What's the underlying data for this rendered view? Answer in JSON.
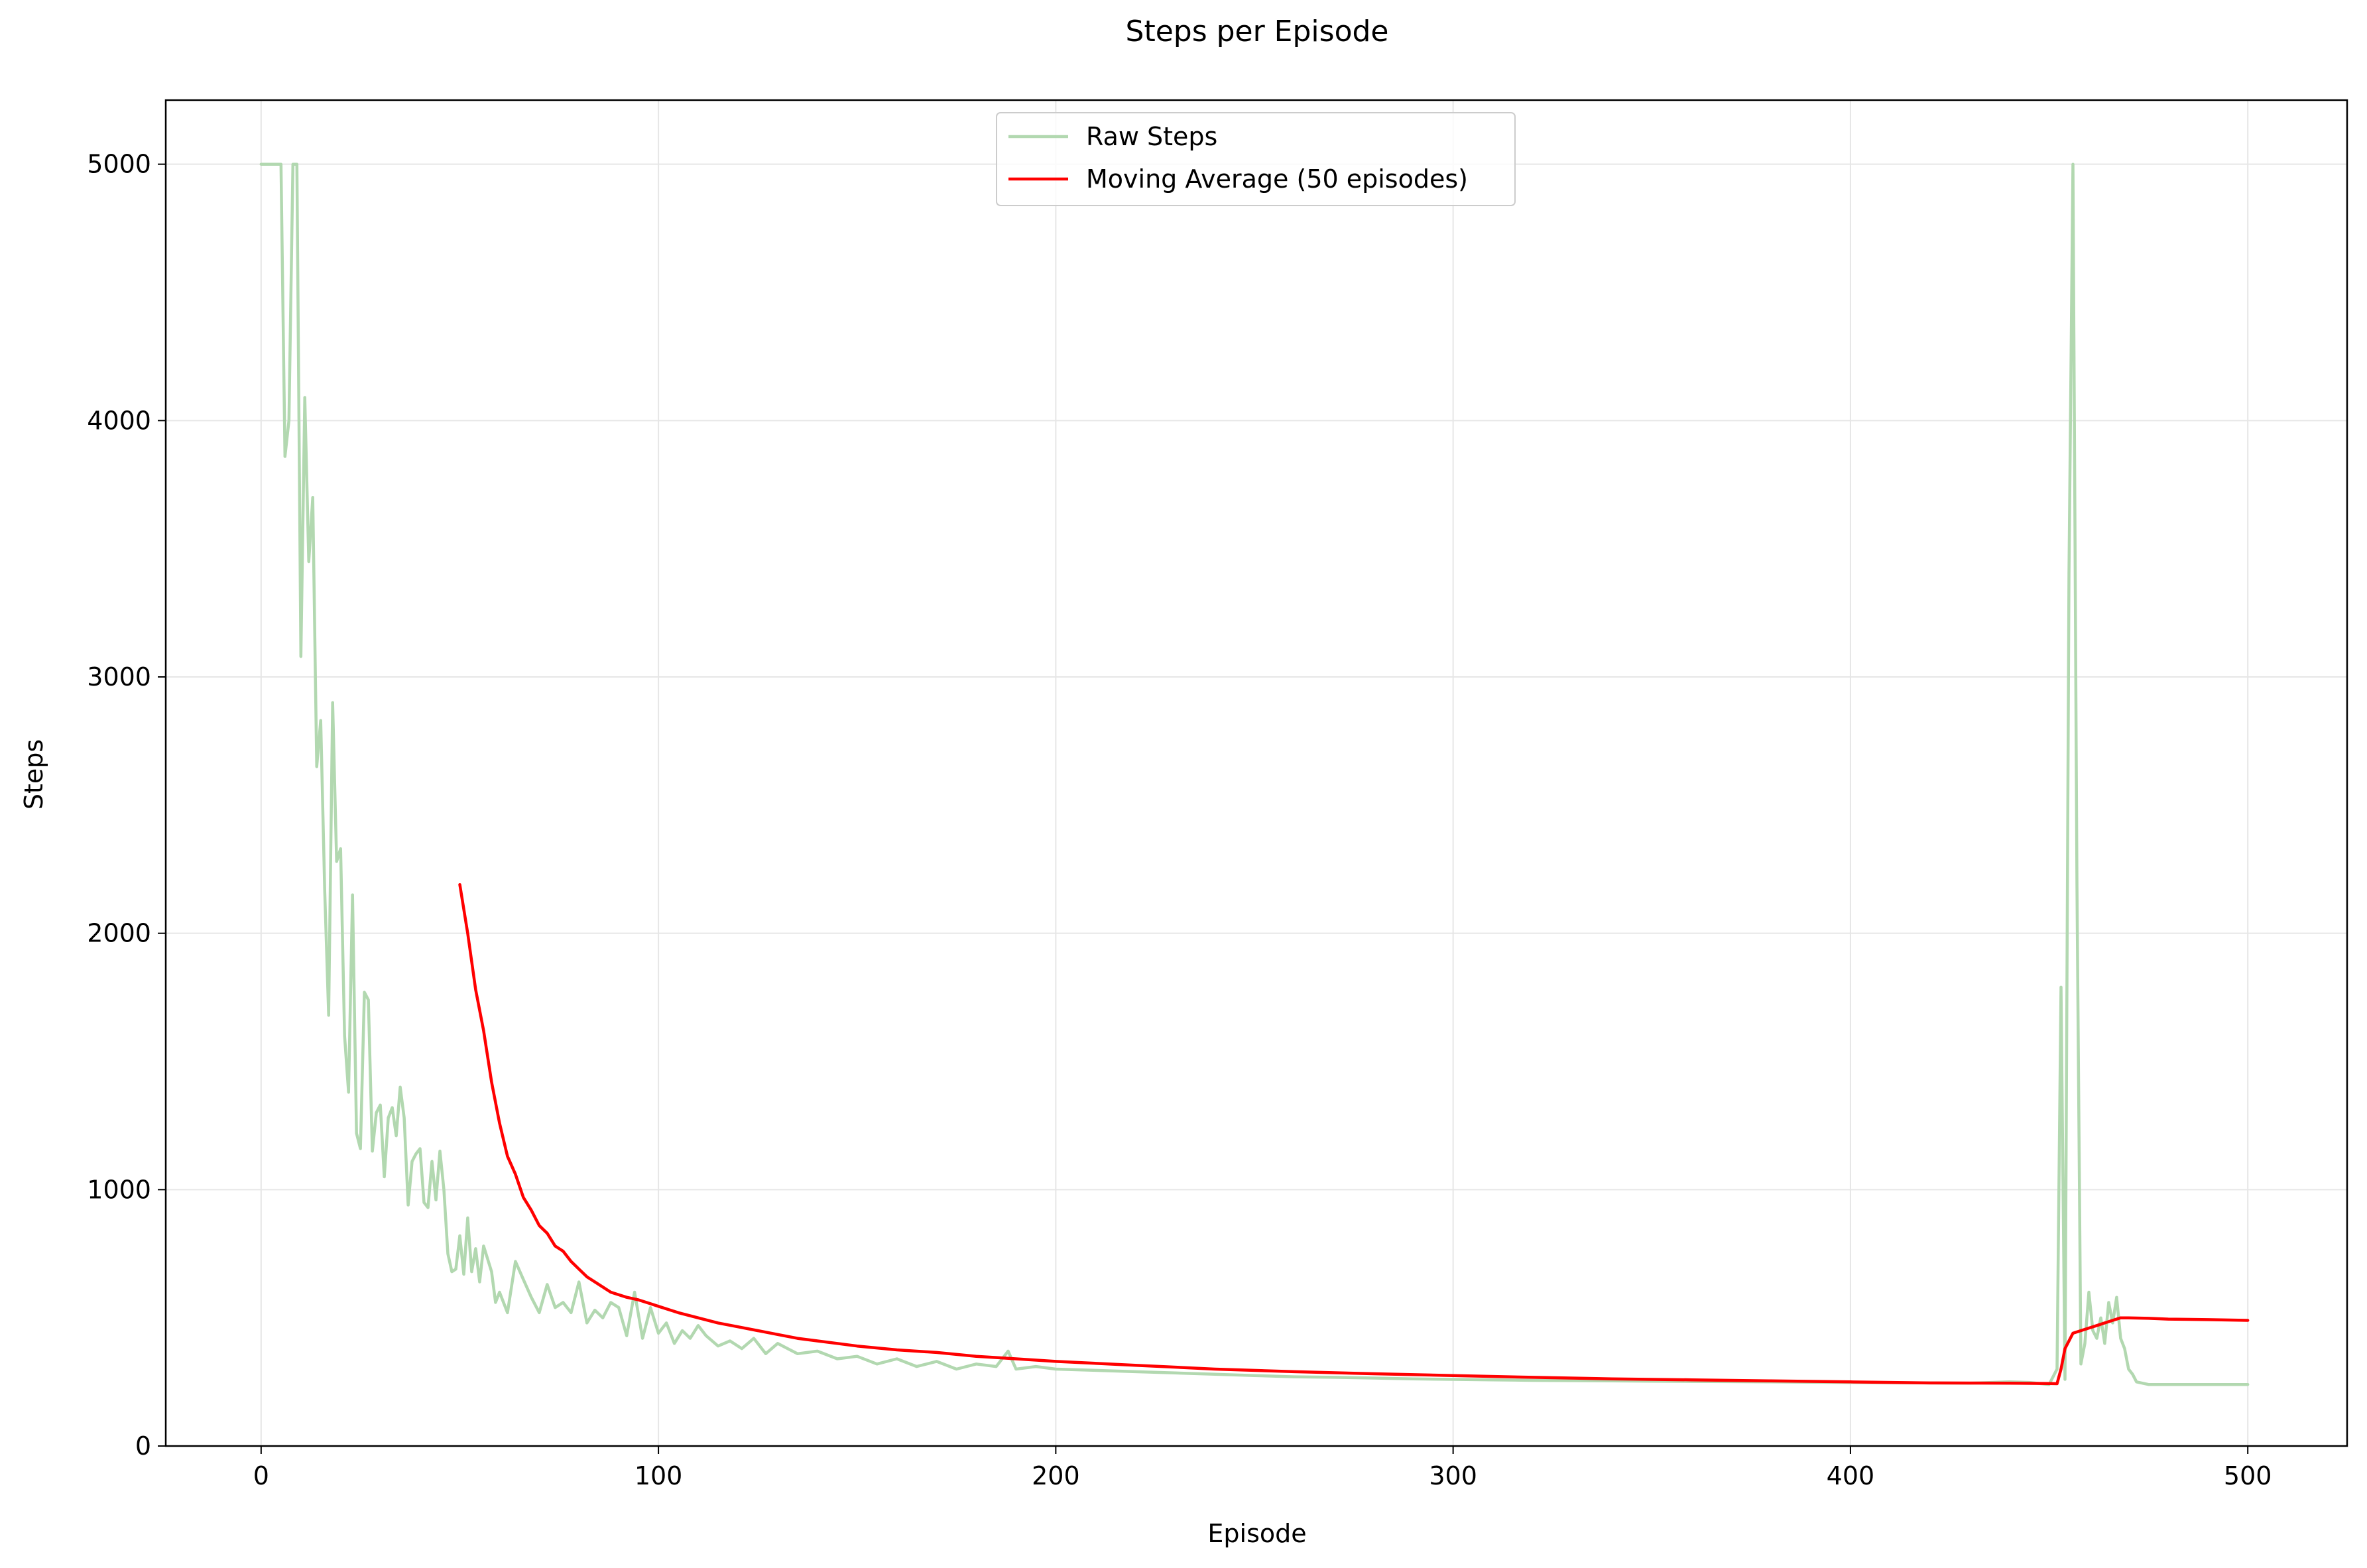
{
  "chart_data": {
    "type": "line",
    "title": "Steps per Episode",
    "xlabel": "Episode",
    "ylabel": "Steps",
    "xlim": [
      -24,
      525
    ],
    "ylim": [
      0,
      5250
    ],
    "xticks": [
      0,
      100,
      200,
      300,
      400,
      500
    ],
    "yticks": [
      0,
      1000,
      2000,
      3000,
      4000,
      5000
    ],
    "grid": true,
    "legend_position": "top-center",
    "series": [
      {
        "name": "Raw Steps",
        "color": "#b2d8b0",
        "x": [
          0,
          5,
          6,
          7,
          8,
          9,
          10,
          11,
          12,
          13,
          14,
          15,
          16,
          17,
          18,
          19,
          20,
          21,
          22,
          23,
          24,
          25,
          26,
          27,
          28,
          29,
          30,
          31,
          32,
          33,
          34,
          35,
          36,
          37,
          38,
          39,
          40,
          41,
          42,
          43,
          44,
          45,
          46,
          47,
          48,
          49,
          50,
          51,
          52,
          53,
          54,
          55,
          56,
          57,
          58,
          59,
          60,
          62,
          64,
          66,
          68,
          70,
          72,
          74,
          76,
          78,
          80,
          82,
          84,
          86,
          88,
          90,
          92,
          94,
          96,
          98,
          100,
          102,
          104,
          106,
          108,
          110,
          112,
          115,
          118,
          121,
          124,
          127,
          130,
          135,
          140,
          145,
          150,
          155,
          160,
          165,
          170,
          175,
          180,
          185,
          188,
          190,
          195,
          200,
          210,
          220,
          230,
          240,
          250,
          260,
          270,
          280,
          290,
          300,
          310,
          320,
          330,
          340,
          350,
          360,
          370,
          380,
          390,
          400,
          410,
          420,
          430,
          440,
          445,
          450,
          452,
          453,
          454,
          455,
          456,
          457,
          458,
          459,
          460,
          461,
          462,
          463,
          464,
          465,
          466,
          467,
          468,
          469,
          470,
          471,
          472,
          475,
          480,
          490,
          500
        ],
        "values": [
          5000,
          5000,
          3860,
          4000,
          5000,
          5000,
          3080,
          4090,
          3450,
          3700,
          2650,
          2830,
          2170,
          1680,
          2900,
          2280,
          2330,
          1600,
          1380,
          2150,
          1220,
          1160,
          1770,
          1740,
          1150,
          1300,
          1330,
          1050,
          1280,
          1320,
          1210,
          1400,
          1280,
          940,
          1110,
          1140,
          1160,
          950,
          930,
          1110,
          960,
          1150,
          1000,
          750,
          680,
          690,
          820,
          670,
          890,
          680,
          770,
          640,
          780,
          730,
          680,
          560,
          600,
          520,
          720,
          650,
          580,
          520,
          630,
          540,
          560,
          520,
          640,
          480,
          530,
          500,
          560,
          540,
          430,
          600,
          420,
          540,
          440,
          480,
          400,
          450,
          420,
          470,
          430,
          390,
          410,
          380,
          420,
          360,
          400,
          360,
          370,
          340,
          350,
          320,
          340,
          310,
          330,
          300,
          320,
          310,
          370,
          300,
          310,
          300,
          295,
          290,
          285,
          280,
          275,
          270,
          268,
          265,
          262,
          260,
          258,
          256,
          255,
          254,
          253,
          252,
          251,
          250,
          249,
          248,
          247,
          246,
          245,
          250,
          248,
          240,
          300,
          1790,
          260,
          3400,
          5000,
          2200,
          320,
          400,
          600,
          450,
          420,
          500,
          400,
          560,
          480,
          580,
          420,
          380,
          300,
          280,
          250,
          240,
          240,
          240,
          240
        ]
      },
      {
        "name": "Moving Average (50 episodes)",
        "color": "#ff0000",
        "x": [
          50,
          52,
          54,
          56,
          58,
          60,
          62,
          64,
          66,
          68,
          70,
          72,
          74,
          76,
          78,
          80,
          82,
          84,
          86,
          88,
          90,
          92,
          95,
          98,
          100,
          105,
          110,
          115,
          120,
          125,
          130,
          135,
          140,
          145,
          150,
          160,
          170,
          180,
          190,
          200,
          220,
          240,
          260,
          280,
          300,
          320,
          340,
          360,
          380,
          400,
          420,
          440,
          450,
          452,
          453,
          454,
          456,
          458,
          460,
          462,
          464,
          466,
          468,
          470,
          475,
          480,
          490,
          500
        ],
        "values": [
          2190,
          2000,
          1780,
          1620,
          1420,
          1260,
          1130,
          1060,
          970,
          920,
          860,
          830,
          780,
          760,
          720,
          690,
          660,
          640,
          620,
          600,
          590,
          580,
          570,
          555,
          545,
          520,
          500,
          480,
          465,
          450,
          435,
          420,
          410,
          400,
          390,
          375,
          365,
          350,
          340,
          330,
          315,
          300,
          290,
          282,
          275,
          268,
          262,
          258,
          254,
          250,
          246,
          245,
          244,
          243,
          300,
          380,
          440,
          450,
          460,
          470,
          480,
          490,
          500,
          500,
          498,
          495,
          493,
          490
        ]
      }
    ]
  }
}
